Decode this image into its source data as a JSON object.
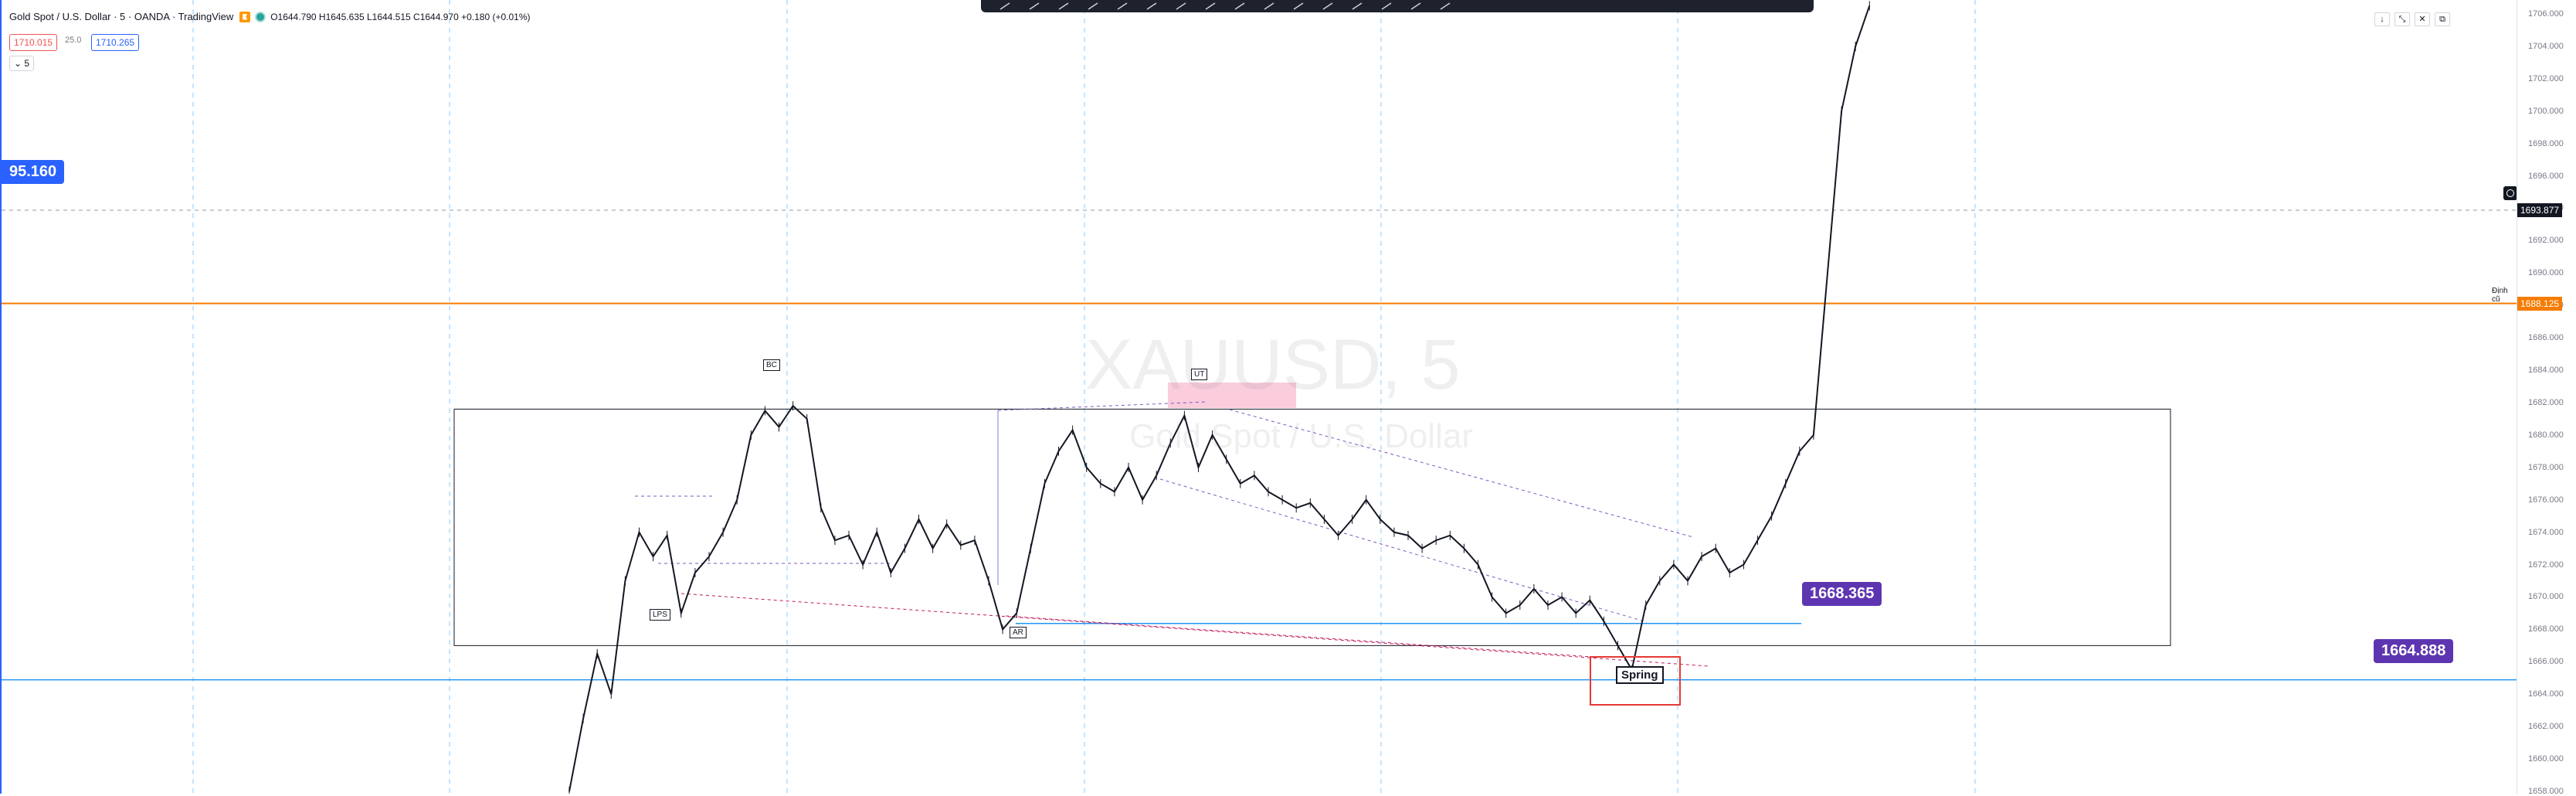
{
  "header": {
    "symbol_title": "Gold Spot / U.S. Dollar · 5 · OANDA · TradingView",
    "ohlc": "O1644.790 H1645.635 L1644.515 C1644.970 +0.180 (+0.01%)",
    "sell_price": "1710.015",
    "spread": "25.0",
    "buy_price": "1710.265",
    "indicator_toggle": "5",
    "market_status_icon": "market-open-dot-icon",
    "flag_icon": "flag-icon"
  },
  "watermark": {
    "symbol": "XAUUSD, 5",
    "description": "Gold Spot / U.S. Dollar"
  },
  "price_scale": {
    "ticks": [
      "1706.000",
      "1704.000",
      "1702.000",
      "1700.000",
      "1698.000",
      "1696.000",
      "1694.000",
      "1692.000",
      "1690.000",
      "1688.000",
      "1686.000",
      "1684.000",
      "1682.000",
      "1680.000",
      "1678.000",
      "1676.000",
      "1674.000",
      "1672.000",
      "1670.000",
      "1668.000",
      "1666.000",
      "1664.000",
      "1662.000",
      "1660.000",
      "1658.000"
    ],
    "crosshair_price": "1693.877",
    "horizontal_line_price": "1688.125",
    "horizontal_line_label": "Định cũ",
    "colors": {
      "orange_line": "#f57c00",
      "blue_line": "#2196f3",
      "badge_purple": "#5e35b1",
      "badge_blue": "#2962ff"
    }
  },
  "annotations": {
    "left_price_badge": "95.160",
    "mid_price_badge": "1668.365",
    "right_price_badge": "1664.888",
    "labels": {
      "bc": "BC",
      "ut": "UT",
      "lps": "LPS",
      "ar": "AR",
      "spring": "Spring"
    }
  },
  "top_right_controls": [
    "↓",
    "⤡",
    "✕",
    "⧉"
  ],
  "toolbar": {
    "tools": [
      "brush-icon",
      "trend-line-icon",
      "ray-icon",
      "pencil-icon",
      "arrow-icon",
      "flag-marker-icon",
      "callout-icon",
      "channel-icon",
      "fib-icon",
      "measure-icon",
      "rectangle-icon",
      "path-icon",
      "text-icon",
      "settings-icon",
      "lock-icon",
      "more-icon"
    ]
  },
  "chart_data": {
    "type": "line",
    "title": "XAUUSD, 5",
    "ylim": [
      1658,
      1707
    ],
    "price_path": [
      [
        1,
        1658.0
      ],
      [
        3,
        1662.5
      ],
      [
        5,
        1666.5
      ],
      [
        7,
        1664.0
      ],
      [
        9,
        1671.0
      ],
      [
        11,
        1674.0
      ],
      [
        13,
        1672.5
      ],
      [
        15,
        1673.8
      ],
      [
        17,
        1669.0
      ],
      [
        19,
        1671.5
      ],
      [
        21,
        1672.5
      ],
      [
        23,
        1674.0
      ],
      [
        25,
        1676.0
      ],
      [
        27,
        1680.0
      ],
      [
        29,
        1681.5
      ],
      [
        31,
        1680.5
      ],
      [
        33,
        1681.8
      ],
      [
        35,
        1681.0
      ],
      [
        37,
        1675.5
      ],
      [
        39,
        1673.5
      ],
      [
        41,
        1673.8
      ],
      [
        43,
        1672.0
      ],
      [
        45,
        1674.0
      ],
      [
        47,
        1671.5
      ],
      [
        49,
        1673.0
      ],
      [
        51,
        1674.8
      ],
      [
        53,
        1673.0
      ],
      [
        55,
        1674.5
      ],
      [
        57,
        1673.2
      ],
      [
        59,
        1673.5
      ],
      [
        61,
        1671.0
      ],
      [
        63,
        1668.0
      ],
      [
        65,
        1669.0
      ],
      [
        67,
        1673.0
      ],
      [
        69,
        1677.0
      ],
      [
        71,
        1679.0
      ],
      [
        73,
        1680.3
      ],
      [
        75,
        1678.0
      ],
      [
        77,
        1677.0
      ],
      [
        79,
        1676.5
      ],
      [
        81,
        1678.0
      ],
      [
        83,
        1676.0
      ],
      [
        85,
        1677.5
      ],
      [
        87,
        1679.5
      ],
      [
        89,
        1681.2
      ],
      [
        91,
        1678.0
      ],
      [
        93,
        1680.0
      ],
      [
        95,
        1678.5
      ],
      [
        97,
        1677.0
      ],
      [
        99,
        1677.5
      ],
      [
        101,
        1676.5
      ],
      [
        103,
        1676.0
      ],
      [
        105,
        1675.5
      ],
      [
        107,
        1675.8
      ],
      [
        109,
        1674.8
      ],
      [
        111,
        1673.8
      ],
      [
        113,
        1674.8
      ],
      [
        115,
        1676.0
      ],
      [
        117,
        1674.8
      ],
      [
        119,
        1674.0
      ],
      [
        121,
        1673.8
      ],
      [
        123,
        1673.0
      ],
      [
        125,
        1673.5
      ],
      [
        127,
        1673.8
      ],
      [
        129,
        1673.0
      ],
      [
        131,
        1672.0
      ],
      [
        133,
        1670.0
      ],
      [
        135,
        1669.0
      ],
      [
        137,
        1669.5
      ],
      [
        139,
        1670.5
      ],
      [
        141,
        1669.5
      ],
      [
        143,
        1670.0
      ],
      [
        145,
        1669.0
      ],
      [
        147,
        1669.8
      ],
      [
        149,
        1668.5
      ],
      [
        151,
        1667.0
      ],
      [
        153,
        1665.5
      ],
      [
        155,
        1669.5
      ],
      [
        157,
        1671.0
      ],
      [
        159,
        1672.0
      ],
      [
        161,
        1671.0
      ],
      [
        163,
        1672.5
      ],
      [
        165,
        1673.0
      ],
      [
        167,
        1671.5
      ],
      [
        169,
        1672.0
      ],
      [
        171,
        1673.5
      ],
      [
        173,
        1675.0
      ],
      [
        175,
        1677.0
      ],
      [
        177,
        1679.0
      ],
      [
        179,
        1680.0
      ],
      [
        181,
        1690.0
      ],
      [
        183,
        1700.0
      ],
      [
        185,
        1704.0
      ],
      [
        187,
        1706.5
      ]
    ],
    "levels": {
      "orange_line": 1688.125,
      "blue_line": 1664.888,
      "crosshair": 1693.877,
      "range_box_top": 1681.6,
      "range_box_bottom": 1667.0,
      "support_line": 1668.365
    },
    "labels": [
      "BC",
      "UT",
      "LPS",
      "AR",
      "Spring"
    ]
  }
}
